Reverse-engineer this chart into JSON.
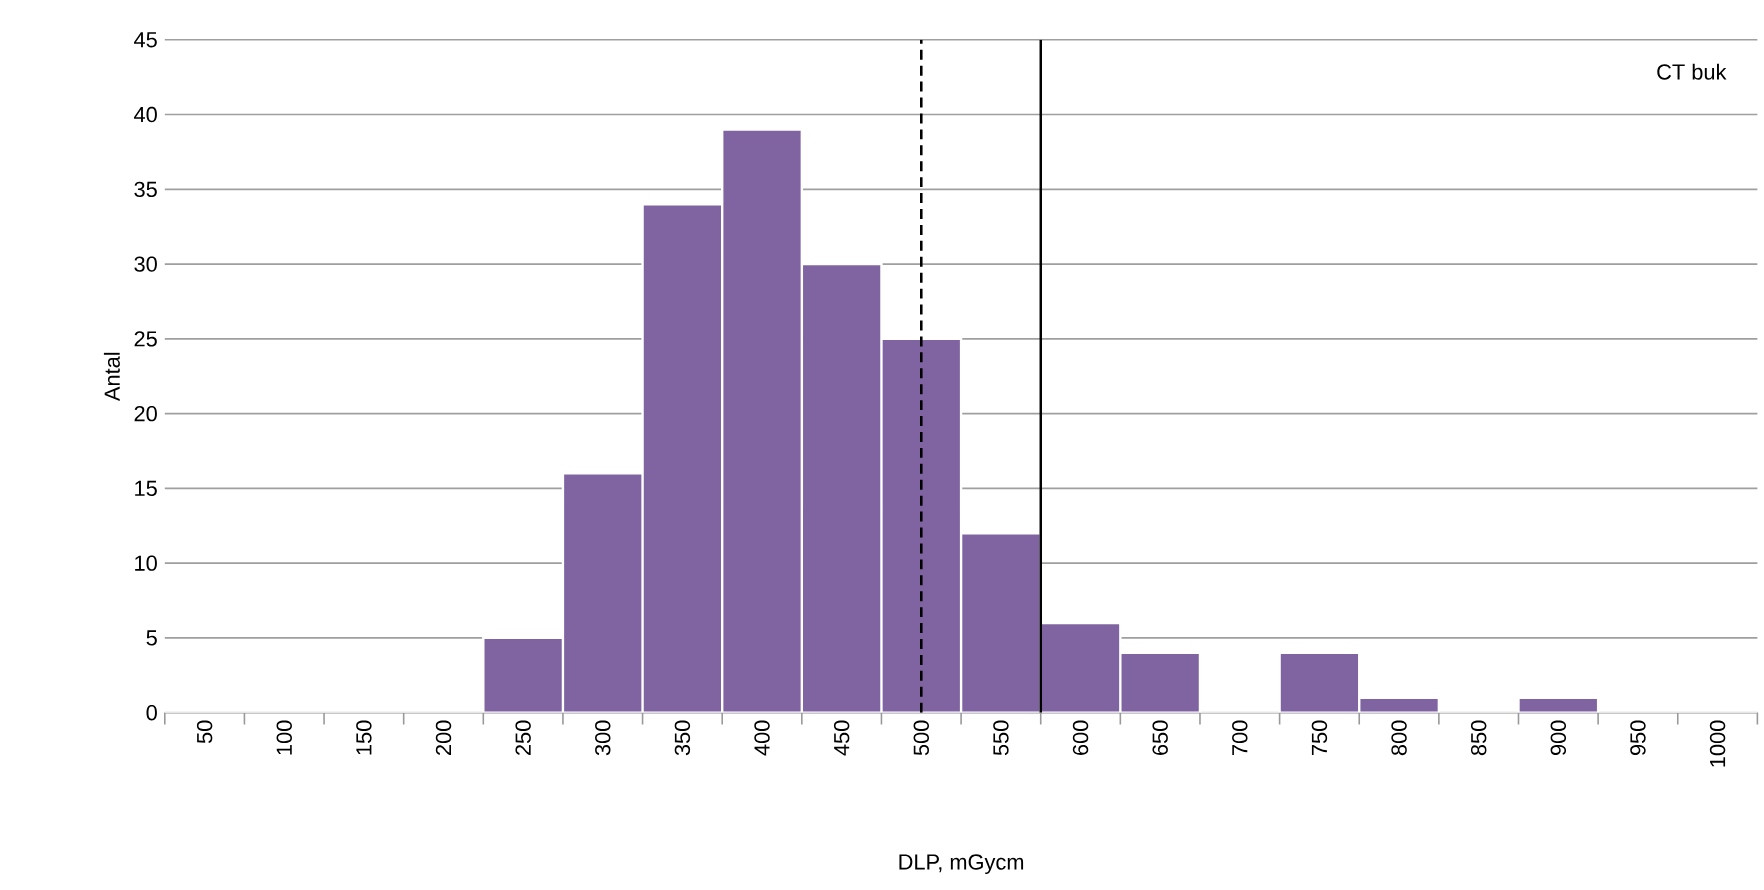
{
  "chart_data": {
    "type": "histogram",
    "bins": [
      25,
      75,
      125,
      175,
      225,
      275,
      325,
      375,
      425,
      475,
      525,
      575,
      625,
      675,
      725,
      775,
      825,
      875,
      925,
      975,
      1025
    ],
    "values": [
      0,
      0,
      0,
      0,
      5,
      16,
      34,
      39,
      30,
      25,
      12,
      6,
      4,
      0,
      4,
      1,
      0,
      1,
      0,
      0
    ],
    "color": "#8064a2",
    "xlabel": "DLP, mGycm",
    "ylabel": "Antal",
    "xlim": [
      25,
      1025
    ],
    "xticks": [
      {
        "value": 25,
        "label": null
      },
      50,
      {
        "value": 75,
        "label": null
      },
      100,
      {
        "value": 125,
        "label": null
      },
      150,
      {
        "value": 175,
        "label": null
      },
      200,
      {
        "value": 225,
        "label": null
      },
      250,
      {
        "value": 275,
        "label": null
      },
      300,
      {
        "value": 325,
        "label": null
      },
      350,
      {
        "value": 375,
        "label": null
      },
      400,
      {
        "value": 425,
        "label": null
      },
      450,
      {
        "value": 475,
        "label": null
      },
      500,
      {
        "value": 525,
        "label": null
      },
      550,
      {
        "value": 575,
        "label": null
      },
      600,
      {
        "value": 625,
        "label": null
      },
      650,
      {
        "value": 675,
        "label": null
      },
      700,
      {
        "value": 725,
        "label": null
      },
      750,
      {
        "value": 775,
        "label": null
      },
      800,
      {
        "value": 825,
        "label": null
      },
      850,
      {
        "value": 875,
        "label": null
      },
      900,
      {
        "value": 925,
        "label": null
      },
      950,
      {
        "value": 975,
        "label": null
      },
      1000,
      {
        "value": 1025,
        "label": null
      }
    ],
    "ylim": [
      0,
      45
    ],
    "yticks": [
      0,
      5,
      10,
      15,
      20,
      25,
      30,
      35,
      40,
      45
    ],
    "grid": "y",
    "ref_lines": [
      {
        "axis": "x",
        "value": 500,
        "color": "#000000",
        "line_style": "dashed"
      },
      {
        "axis": "x",
        "value": 575,
        "color": "#000000",
        "line_style": "solid"
      }
    ],
    "annotations": [
      "CT buk"
    ]
  }
}
